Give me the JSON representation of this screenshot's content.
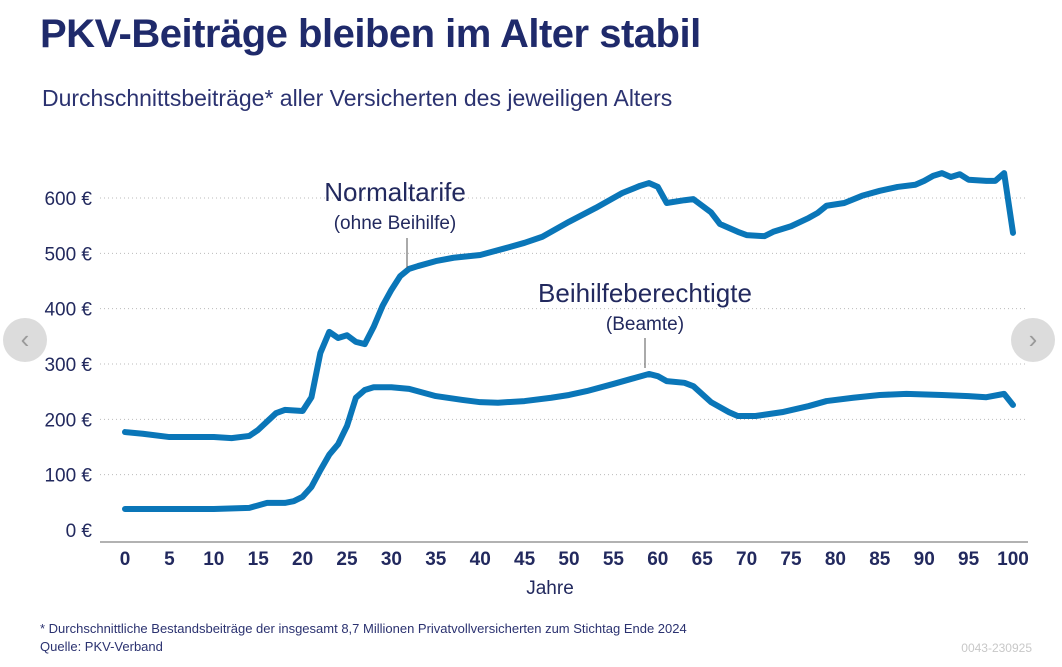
{
  "header": {
    "title": "PKV-Beiträge bleiben im Alter stabil",
    "subtitle": "Durchschnittsbeiträge* aller Versicherten des jeweiligen Alters"
  },
  "chart_data": {
    "type": "line",
    "xlabel": "Jahre",
    "ylabel": "",
    "xlim": [
      0,
      100
    ],
    "ylim": [
      0,
      600
    ],
    "xticks": [
      "0",
      "5",
      "10",
      "15",
      "20",
      "25",
      "30",
      "35",
      "40",
      "45",
      "50",
      "55",
      "60",
      "65",
      "70",
      "75",
      "80",
      "85",
      "90",
      "95",
      "100"
    ],
    "yticks": [
      "0 €",
      "100 €",
      "200 €",
      "300 €",
      "400 €",
      "500 €",
      "600 €"
    ],
    "grid": "horizontal dotted",
    "color": "#0a76b8",
    "series": [
      {
        "name": "Normaltarife",
        "name_sub": "(ohne Beihilfe)",
        "points": [
          [
            0,
            177
          ],
          [
            2,
            174
          ],
          [
            5,
            168
          ],
          [
            10,
            168
          ],
          [
            12,
            166
          ],
          [
            14,
            170
          ],
          [
            15,
            181
          ],
          [
            17,
            211
          ],
          [
            18,
            217
          ],
          [
            20,
            215
          ],
          [
            21,
            240
          ],
          [
            22,
            320
          ],
          [
            23,
            358
          ],
          [
            24,
            347
          ],
          [
            25,
            352
          ],
          [
            26,
            340
          ],
          [
            27,
            336
          ],
          [
            28,
            367
          ],
          [
            29,
            405
          ],
          [
            30,
            434
          ],
          [
            31,
            459
          ],
          [
            32,
            472
          ],
          [
            33,
            477
          ],
          [
            35,
            486
          ],
          [
            37,
            492
          ],
          [
            40,
            497
          ],
          [
            43,
            510
          ],
          [
            45,
            519
          ],
          [
            47,
            530
          ],
          [
            50,
            557
          ],
          [
            53,
            582
          ],
          [
            56,
            609
          ],
          [
            58,
            622
          ],
          [
            59,
            627
          ],
          [
            60,
            620
          ],
          [
            61,
            591
          ],
          [
            63,
            596
          ],
          [
            64,
            598
          ],
          [
            66,
            574
          ],
          [
            67,
            553
          ],
          [
            69,
            539
          ],
          [
            70,
            533
          ],
          [
            72,
            531
          ],
          [
            73,
            539
          ],
          [
            75,
            549
          ],
          [
            77,
            564
          ],
          [
            78,
            573
          ],
          [
            79,
            586
          ],
          [
            81,
            591
          ],
          [
            83,
            604
          ],
          [
            85,
            613
          ],
          [
            87,
            620
          ],
          [
            89,
            624
          ],
          [
            90,
            631
          ],
          [
            91,
            640
          ],
          [
            92,
            645
          ],
          [
            93,
            638
          ],
          [
            94,
            643
          ],
          [
            95,
            633
          ],
          [
            97,
            631
          ],
          [
            98,
            631
          ],
          [
            99,
            645
          ],
          [
            100,
            537
          ]
        ]
      },
      {
        "name": "Beihilfeberechtigte",
        "name_sub": "(Beamte)",
        "points": [
          [
            0,
            38
          ],
          [
            5,
            38
          ],
          [
            10,
            38
          ],
          [
            14,
            40
          ],
          [
            16,
            49
          ],
          [
            18,
            49
          ],
          [
            19,
            52
          ],
          [
            20,
            60
          ],
          [
            21,
            78
          ],
          [
            22,
            108
          ],
          [
            23,
            136
          ],
          [
            24,
            155
          ],
          [
            25,
            188
          ],
          [
            26,
            239
          ],
          [
            27,
            253
          ],
          [
            28,
            258
          ],
          [
            30,
            258
          ],
          [
            32,
            255
          ],
          [
            35,
            242
          ],
          [
            38,
            235
          ],
          [
            40,
            231
          ],
          [
            42,
            230
          ],
          [
            45,
            233
          ],
          [
            48,
            239
          ],
          [
            50,
            244
          ],
          [
            52,
            251
          ],
          [
            55,
            264
          ],
          [
            57,
            273
          ],
          [
            59,
            282
          ],
          [
            60,
            278
          ],
          [
            61,
            269
          ],
          [
            63,
            266
          ],
          [
            64,
            260
          ],
          [
            66,
            231
          ],
          [
            68,
            213
          ],
          [
            69,
            206
          ],
          [
            71,
            206
          ],
          [
            74,
            213
          ],
          [
            77,
            224
          ],
          [
            79,
            233
          ],
          [
            82,
            239
          ],
          [
            85,
            244
          ],
          [
            88,
            246
          ],
          [
            92,
            244
          ],
          [
            95,
            242
          ],
          [
            97,
            240
          ],
          [
            99,
            246
          ],
          [
            100,
            226
          ]
        ]
      }
    ]
  },
  "footer": {
    "note": "* Durchschnittliche Bestandsbeiträge der insgesamt 8,7 Millionen Privatvollversicherten zum Stichtag Ende 2024",
    "source": "Quelle: PKV-Verband",
    "code": "0043-230925"
  },
  "nav": {
    "prev": "‹",
    "next": "›"
  }
}
